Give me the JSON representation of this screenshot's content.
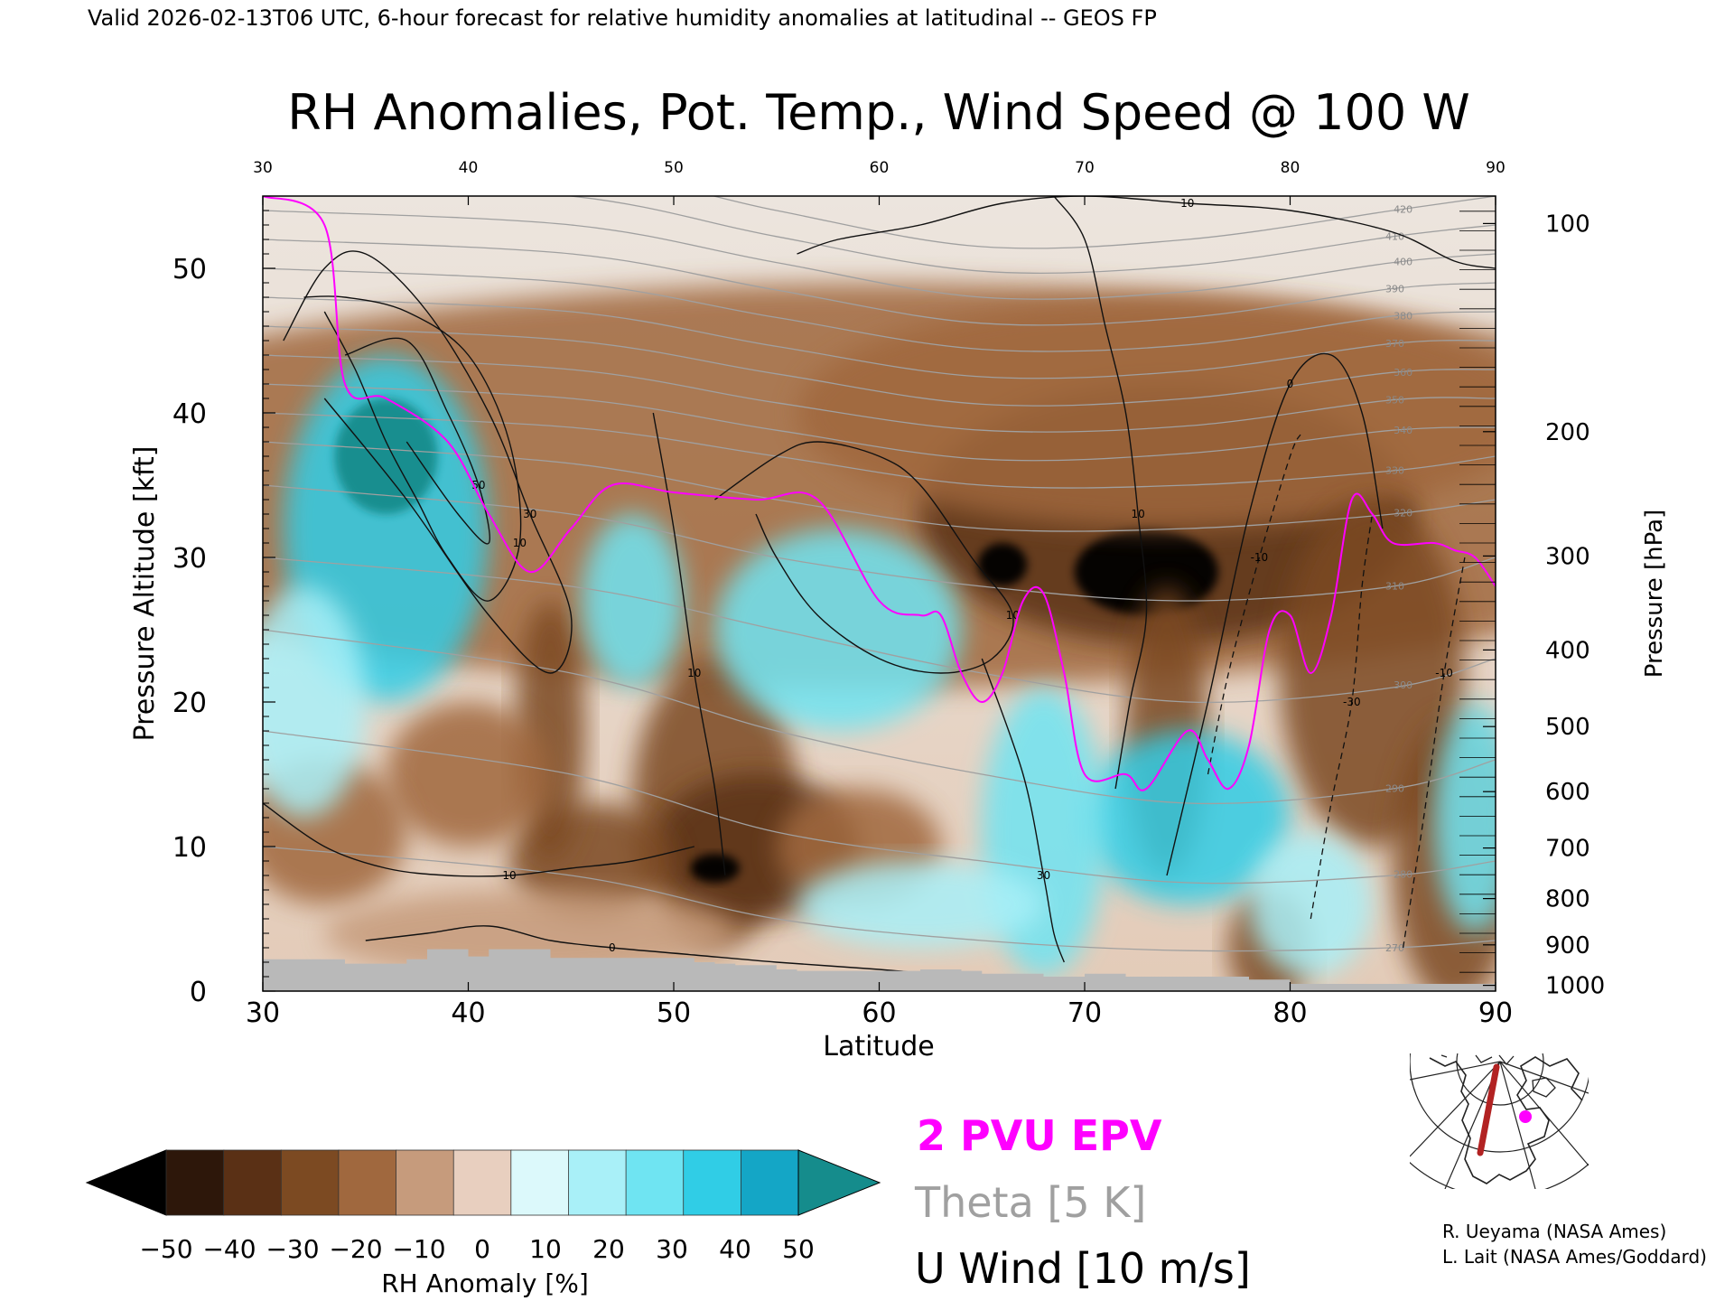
{
  "header": {
    "valid_line": "Valid 2026-02-13T06 UTC, 6-hour forecast for relative humidity anomalies at latitudinal -- GEOS FP",
    "title": "RH Anomalies, Pot. Temp., Wind Speed @ 100 W"
  },
  "legend_lines": {
    "epv": "2 PVU EPV",
    "theta": "Theta [5 K]",
    "uwind": "U Wind [10 m/s]"
  },
  "credits": {
    "line1": "R. Ueyama (NASA Ames)",
    "line2": "L. Lait (NASA Ames/Goddard)"
  },
  "colors": {
    "epv": "#ff00ff",
    "theta": "#a0a0a0",
    "terrain": "#b9b9b9",
    "map_track": "#b22222",
    "map_point": "#ff00ff"
  },
  "chart_data": {
    "type": "heatmap",
    "title": "RH Anomalies, Pot. Temp., Wind Speed @ 100 W",
    "xlabel": "Latitude",
    "ylabel": "Pressure Altitude [kft]",
    "y2label": "Pressure [hPa]",
    "xlim": [
      30,
      90
    ],
    "ylim": [
      0,
      55
    ],
    "x_ticks": [
      30,
      40,
      50,
      60,
      70,
      80,
      90
    ],
    "y_ticks": [
      0,
      10,
      20,
      30,
      40,
      50
    ],
    "pressure_ticks": [
      {
        "value": "100",
        "kft": 53.1
      },
      {
        "value": "200",
        "kft": 38.7
      },
      {
        "value": "300",
        "kft": 30.1
      },
      {
        "value": "400",
        "kft": 23.6
      },
      {
        "value": "500",
        "kft": 18.3
      },
      {
        "value": "600",
        "kft": 13.8
      },
      {
        "value": "700",
        "kft": 9.9
      },
      {
        "value": "800",
        "kft": 6.4
      },
      {
        "value": "900",
        "kft": 3.2
      },
      {
        "value": "1000",
        "kft": 0.4
      }
    ],
    "colorbar": {
      "label": "RH Anomaly [%]",
      "ticks": [
        "−50",
        "−40",
        "−30",
        "−20",
        "−10",
        "0",
        "10",
        "20",
        "30",
        "40",
        "50"
      ],
      "colors": [
        "#2d170a",
        "#5a3015",
        "#7c4a22",
        "#a0683e",
        "#c69b7c",
        "#e8cfbf",
        "#dcf9fb",
        "#a9f0f8",
        "#6fe4f2",
        "#30cde6",
        "#14a6c6"
      ],
      "under_color": "#000000",
      "over_color": "#158c8c"
    },
    "theta_labels": [
      "420",
      "410",
      "400",
      "390",
      "380",
      "370",
      "360",
      "350",
      "340",
      "330",
      "320",
      "310",
      "300",
      "290",
      "280",
      "270"
    ],
    "wind_labels": [
      "10",
      "30",
      "50",
      "0"
    ],
    "rh_blobs": [
      {
        "lat": 60,
        "alt": 35,
        "rx": 45,
        "ry": 14,
        "anom": -18
      },
      {
        "lat": 74,
        "alt": 33,
        "rx": 12,
        "ry": 9,
        "anom": -38
      },
      {
        "lat": 73,
        "alt": 29,
        "rx": 3.5,
        "ry": 3,
        "anom": -55
      },
      {
        "lat": 66,
        "alt": 29.5,
        "rx": 1.2,
        "ry": 1.5,
        "anom": -55
      },
      {
        "lat": 74,
        "alt": 40,
        "rx": 18,
        "ry": 8,
        "anom": -22
      },
      {
        "lat": 84,
        "alt": 22,
        "rx": 4.5,
        "ry": 12,
        "anom": -32
      },
      {
        "lat": 88,
        "alt": 9,
        "rx": 3,
        "ry": 10,
        "anom": -30
      },
      {
        "lat": 74,
        "alt": 18,
        "rx": 2,
        "ry": 10,
        "anom": -30
      },
      {
        "lat": 52,
        "alt": 13,
        "rx": 4,
        "ry": 10,
        "anom": -35
      },
      {
        "lat": 54,
        "alt": 10,
        "rx": 5,
        "ry": 5,
        "anom": -36
      },
      {
        "lat": 52,
        "alt": 8.5,
        "rx": 1.2,
        "ry": 1,
        "anom": -55
      },
      {
        "lat": 46,
        "alt": 9,
        "rx": 4,
        "ry": 4,
        "anom": -33
      },
      {
        "lat": 44,
        "alt": 18,
        "rx": 1.7,
        "ry": 9,
        "anom": -30
      },
      {
        "lat": 40,
        "alt": 15,
        "rx": 4,
        "ry": 5,
        "anom": -18
      },
      {
        "lat": 33,
        "alt": 11,
        "rx": 4,
        "ry": 5,
        "anom": -25
      },
      {
        "lat": 59,
        "alt": 10,
        "rx": 4,
        "ry": 4,
        "anom": -25
      },
      {
        "lat": 79,
        "alt": 3,
        "rx": 2,
        "ry": 4,
        "anom": -30
      },
      {
        "lat": 43,
        "alt": 4,
        "rx": 10,
        "ry": 3,
        "anom": -15
      },
      {
        "lat": 36,
        "alt": 32,
        "rx": 5,
        "ry": 12,
        "anom": 35
      },
      {
        "lat": 36,
        "alt": 37,
        "rx": 2.5,
        "ry": 4,
        "anom": 55
      },
      {
        "lat": 58,
        "alt": 25,
        "rx": 6,
        "ry": 7,
        "anom": 28
      },
      {
        "lat": 48,
        "alt": 27,
        "rx": 2.5,
        "ry": 6,
        "anom": 25
      },
      {
        "lat": 75,
        "alt": 12,
        "rx": 5,
        "ry": 6,
        "anom": 42
      },
      {
        "lat": 68,
        "alt": 11,
        "rx": 3,
        "ry": 10,
        "anom": 25
      },
      {
        "lat": 62,
        "alt": 6,
        "rx": 6,
        "ry": 3,
        "anom": 18
      },
      {
        "lat": 81,
        "alt": 6,
        "rx": 3,
        "ry": 5,
        "anom": 22
      },
      {
        "lat": 89,
        "alt": 12,
        "rx": 2,
        "ry": 8,
        "anom": 28
      },
      {
        "lat": 32,
        "alt": 20,
        "rx": 3,
        "ry": 8,
        "anom": 20
      }
    ],
    "theta_levels": [
      {
        "value": 420,
        "lat": [
          30,
          45,
          55,
          65,
          75,
          85,
          90
        ],
        "alt": [
          58,
          57,
          54,
          51.5,
          52,
          54,
          55
        ]
      },
      {
        "value": 410,
        "lat": [
          30,
          45,
          55,
          65,
          75,
          85,
          90
        ],
        "alt": [
          56,
          55,
          52.2,
          49.8,
          50.2,
          52.2,
          53
        ]
      },
      {
        "value": 400,
        "lat": [
          30,
          45,
          55,
          65,
          75,
          85,
          90
        ],
        "alt": [
          54,
          53,
          50.4,
          48,
          48.4,
          50.4,
          51
        ]
      },
      {
        "value": 390,
        "lat": [
          30,
          45,
          55,
          65,
          75,
          85,
          90
        ],
        "alt": [
          52,
          51,
          48.5,
          46.2,
          46.6,
          48.6,
          49
        ]
      },
      {
        "value": 380,
        "lat": [
          30,
          45,
          55,
          65,
          75,
          85,
          90
        ],
        "alt": [
          50,
          49,
          46.6,
          44.4,
          44.7,
          46.7,
          47
        ]
      },
      {
        "value": 370,
        "lat": [
          30,
          45,
          55,
          65,
          75,
          85,
          90
        ],
        "alt": [
          48,
          47,
          44.6,
          42.5,
          42.9,
          44.8,
          45
        ]
      },
      {
        "value": 360,
        "lat": [
          30,
          45,
          55,
          65,
          75,
          85,
          90
        ],
        "alt": [
          46,
          45,
          42.7,
          40.6,
          41,
          42.8,
          43
        ]
      },
      {
        "value": 350,
        "lat": [
          30,
          45,
          55,
          65,
          75,
          85,
          90
        ],
        "alt": [
          44,
          43,
          40.7,
          38.8,
          39.1,
          40.9,
          41
        ]
      },
      {
        "value": 340,
        "lat": [
          30,
          45,
          55,
          65,
          75,
          85,
          90
        ],
        "alt": [
          42,
          41,
          38.8,
          36.8,
          37.2,
          38.8,
          39
        ]
      },
      {
        "value": 330,
        "lat": [
          30,
          45,
          55,
          65,
          75,
          85,
          90
        ],
        "alt": [
          40,
          39,
          37,
          35,
          35,
          36,
          37
        ]
      },
      {
        "value": 320,
        "lat": [
          30,
          45,
          55,
          65,
          75,
          85,
          90
        ],
        "alt": [
          38,
          36.5,
          34,
          32,
          32,
          33,
          34
        ]
      },
      {
        "value": 310,
        "lat": [
          30,
          45,
          55,
          65,
          75,
          85,
          90
        ],
        "alt": [
          35,
          33,
          30,
          28,
          27,
          28,
          30
        ]
      },
      {
        "value": 300,
        "lat": [
          30,
          45,
          55,
          65,
          75,
          85,
          90
        ],
        "alt": [
          30,
          28,
          25,
          22,
          20,
          21,
          23
        ]
      },
      {
        "value": 290,
        "lat": [
          30,
          45,
          55,
          65,
          75,
          85,
          90
        ],
        "alt": [
          25,
          22,
          18,
          15,
          13,
          14,
          16
        ]
      },
      {
        "value": 280,
        "lat": [
          30,
          45,
          55,
          65,
          75,
          85,
          90
        ],
        "alt": [
          18,
          15,
          11,
          9,
          7.5,
          8,
          9
        ]
      },
      {
        "value": 270,
        "lat": [
          30,
          45,
          55,
          65,
          75,
          85,
          90
        ],
        "alt": [
          10,
          8,
          5,
          3.5,
          2.8,
          3,
          3.5
        ]
      }
    ],
    "epv_2pvu": {
      "lat": [
        30,
        33,
        34,
        36,
        39,
        41,
        43,
        45,
        47,
        50,
        54,
        57,
        60,
        62,
        63,
        64,
        65,
        66,
        67,
        68,
        69,
        70,
        72,
        73,
        75,
        76,
        77,
        78,
        79,
        80,
        81,
        82,
        83,
        84,
        85,
        87,
        88,
        89,
        90
      ],
      "alt": [
        55,
        53,
        42,
        41,
        38,
        33,
        29,
        32,
        35,
        34.5,
        34,
        34,
        27,
        26,
        26,
        22,
        20,
        22,
        27,
        27.5,
        22,
        15,
        15,
        14,
        18,
        16,
        14,
        17,
        25,
        26,
        22,
        26,
        34,
        33,
        31,
        31,
        30.5,
        30,
        28
      ]
    },
    "u_wind": [
      {
        "label": "10",
        "lat": [
          33,
          34.5,
          36,
          37.5,
          39,
          41,
          42.5,
          42,
          40,
          37,
          34,
          32
        ],
        "alt": [
          47,
          43,
          38,
          34,
          30,
          27,
          31,
          38,
          44,
          47,
          48,
          48
        ]
      },
      {
        "label": "30",
        "lat": [
          31,
          33,
          35,
          38,
          41,
          43,
          45,
          44,
          41,
          37,
          33
        ],
        "alt": [
          45,
          50,
          51,
          47,
          40,
          33,
          26,
          22,
          26,
          34,
          41
        ]
      },
      {
        "label": "50",
        "lat": [
          34,
          37,
          39,
          40.5,
          41,
          39.5,
          37
        ],
        "alt": [
          44,
          45,
          40,
          35,
          31,
          33,
          38
        ]
      },
      {
        "label": "10",
        "lat": [
          52,
          55,
          57,
          60,
          62,
          64.5,
          66.5,
          65.5,
          63,
          60,
          57,
          55,
          54
        ],
        "alt": [
          34,
          37,
          38,
          37,
          35,
          30,
          26,
          23,
          22,
          23,
          26,
          30,
          33
        ]
      },
      {
        "label": "10",
        "lat": [
          49,
          50,
          51,
          52,
          52.5
        ],
        "alt": [
          40,
          32,
          22,
          14,
          8
        ]
      },
      {
        "label": "10",
        "lat": [
          68.5,
          70,
          71,
          72,
          72.6,
          73,
          72.2,
          71.5
        ],
        "alt": [
          55,
          52,
          46,
          40,
          33,
          26,
          20,
          14
        ]
      },
      {
        "label": "0",
        "lat": [
          74,
          76,
          78,
          80,
          82,
          83.5,
          84.5
        ],
        "alt": [
          8,
          20,
          33,
          42,
          44,
          40,
          32
        ]
      },
      {
        "label": "30",
        "lat": [
          65,
          67,
          68,
          68.5,
          69
        ],
        "alt": [
          23,
          15,
          8,
          4,
          2
        ]
      },
      {
        "label": "10",
        "lat": [
          30,
          33,
          36,
          39,
          42,
          45,
          48,
          51
        ],
        "alt": [
          13,
          10,
          8.5,
          8,
          8,
          8.5,
          9,
          10
        ]
      },
      {
        "label": "0",
        "lat": [
          35,
          38,
          41,
          44,
          47,
          51,
          55,
          60,
          64
        ],
        "alt": [
          3.5,
          4,
          4.5,
          3.5,
          3,
          2.5,
          2,
          1.5,
          1
        ]
      },
      {
        "label": "10",
        "lat": [
          56,
          58,
          62,
          66,
          70,
          75,
          80,
          85,
          88,
          90
        ],
        "alt": [
          51,
          52,
          53,
          54.5,
          55,
          54.5,
          54,
          52.5,
          50.5,
          50
        ]
      }
    ],
    "u_wind_negative": [
      {
        "label": "-10",
        "lat": [
          76,
          77,
          78.5,
          80,
          80.5
        ],
        "alt": [
          15,
          22,
          30,
          37,
          38.5
        ]
      },
      {
        "label": "-30",
        "lat": [
          81,
          82,
          83,
          83.5,
          84
        ],
        "alt": [
          5,
          13,
          20,
          28,
          33
        ]
      },
      {
        "label": "-10",
        "lat": [
          85.5,
          86.5,
          87.5,
          88.5
        ],
        "alt": [
          3,
          12,
          22,
          30
        ]
      }
    ],
    "terrain": {
      "lat": [
        30,
        33,
        34,
        37,
        38,
        40,
        41,
        43,
        44,
        50,
        51,
        52,
        53,
        55,
        56,
        60,
        62,
        64,
        65,
        68,
        70,
        72,
        78,
        80,
        90
      ],
      "alt": [
        2.2,
        2.2,
        1.9,
        2.2,
        2.9,
        2.4,
        2.9,
        2.9,
        2.3,
        2.3,
        2.0,
        1.9,
        1.8,
        1.5,
        1.4,
        1.4,
        1.5,
        1.4,
        1.2,
        1.0,
        1.2,
        1.0,
        0.8,
        0.5,
        0.3
      ]
    }
  }
}
